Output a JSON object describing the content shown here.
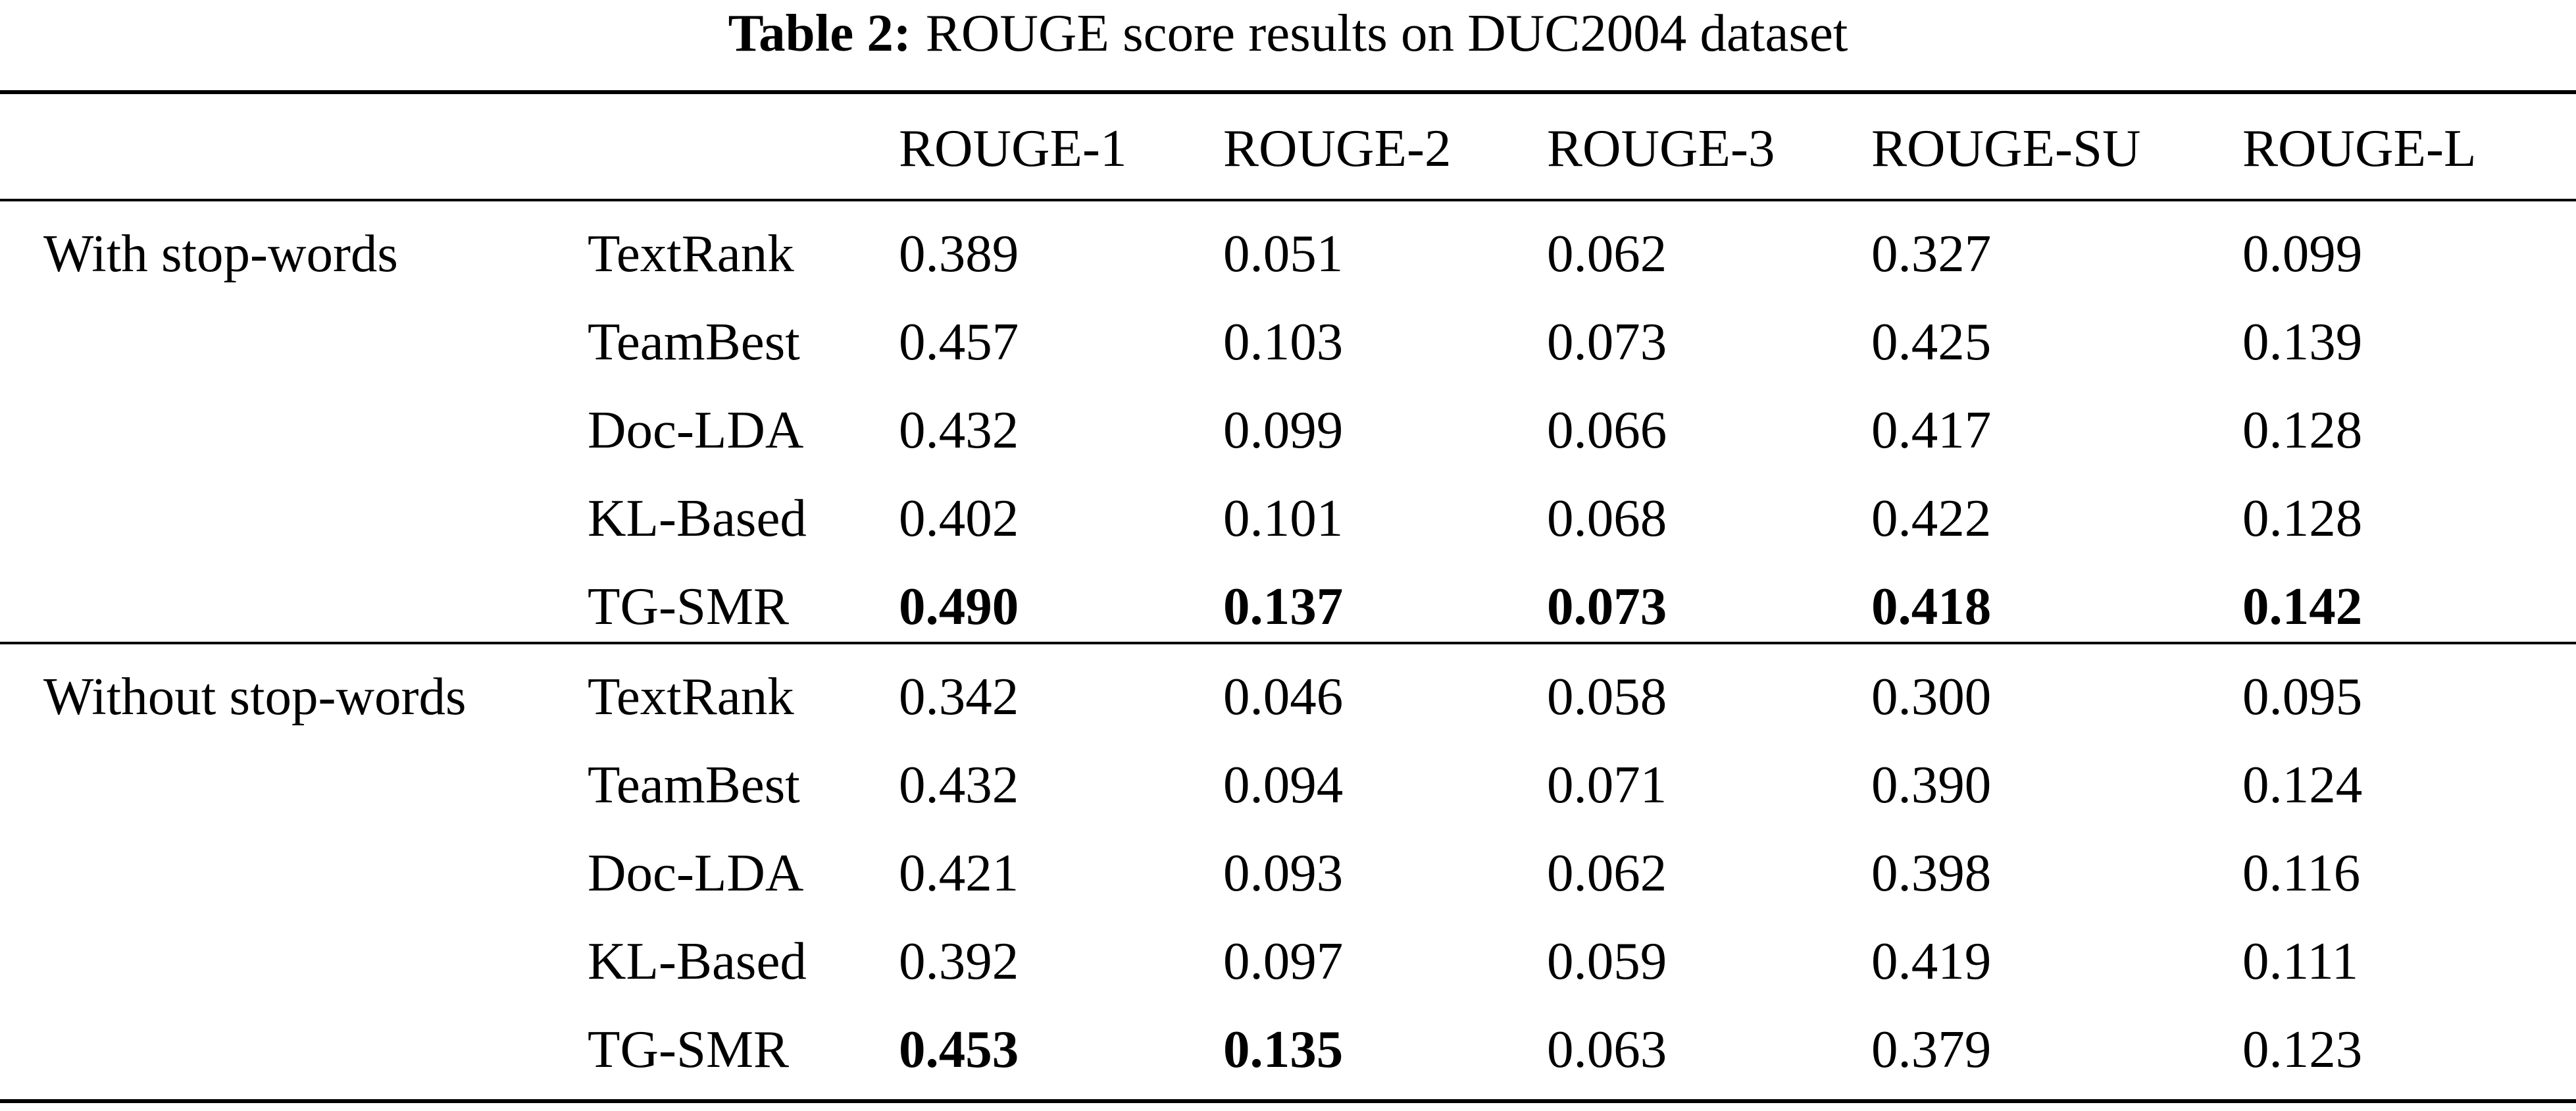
{
  "caption": {
    "label": "Table 2:",
    "text": "ROUGE score results on DUC2004 dataset"
  },
  "table": {
    "columns": [
      "ROUGE-1",
      "ROUGE-2",
      "ROUGE-3",
      "ROUGE-SU",
      "ROUGE-L"
    ],
    "groups": [
      {
        "label": "With stop-words",
        "rows": [
          {
            "method": "TextRank",
            "values": [
              "0.389",
              "0.051",
              "0.062",
              "0.327",
              "0.099"
            ],
            "bold": [
              false,
              false,
              false,
              false,
              false
            ]
          },
          {
            "method": "TeamBest",
            "values": [
              "0.457",
              "0.103",
              "0.073",
              "0.425",
              "0.139"
            ],
            "bold": [
              false,
              false,
              false,
              false,
              false
            ]
          },
          {
            "method": "Doc-LDA",
            "values": [
              "0.432",
              "0.099",
              "0.066",
              "0.417",
              "0.128"
            ],
            "bold": [
              false,
              false,
              false,
              false,
              false
            ]
          },
          {
            "method": "KL-Based",
            "values": [
              "0.402",
              "0.101",
              "0.068",
              "0.422",
              "0.128"
            ],
            "bold": [
              false,
              false,
              false,
              false,
              false
            ]
          },
          {
            "method": "TG-SMR",
            "values": [
              "0.490",
              "0.137",
              "0.073",
              "0.418",
              "0.142"
            ],
            "bold": [
              true,
              true,
              true,
              true,
              true
            ]
          }
        ]
      },
      {
        "label": "Without stop-words",
        "rows": [
          {
            "method": "TextRank",
            "values": [
              "0.342",
              "0.046",
              "0.058",
              "0.300",
              "0.095"
            ],
            "bold": [
              false,
              false,
              false,
              false,
              false
            ]
          },
          {
            "method": "TeamBest",
            "values": [
              "0.432",
              "0.094",
              "0.071",
              "0.390",
              "0.124"
            ],
            "bold": [
              false,
              false,
              false,
              false,
              false
            ]
          },
          {
            "method": "Doc-LDA",
            "values": [
              "0.421",
              "0.093",
              "0.062",
              "0.398",
              "0.116"
            ],
            "bold": [
              false,
              false,
              false,
              false,
              false
            ]
          },
          {
            "method": "KL-Based",
            "values": [
              "0.392",
              "0.097",
              "0.059",
              "0.419",
              "0.111"
            ],
            "bold": [
              false,
              false,
              false,
              false,
              false
            ]
          },
          {
            "method": "TG-SMR",
            "values": [
              "0.453",
              "0.135",
              "0.063",
              "0.379",
              "0.123"
            ],
            "bold": [
              true,
              true,
              false,
              false,
              false
            ]
          }
        ]
      }
    ]
  }
}
